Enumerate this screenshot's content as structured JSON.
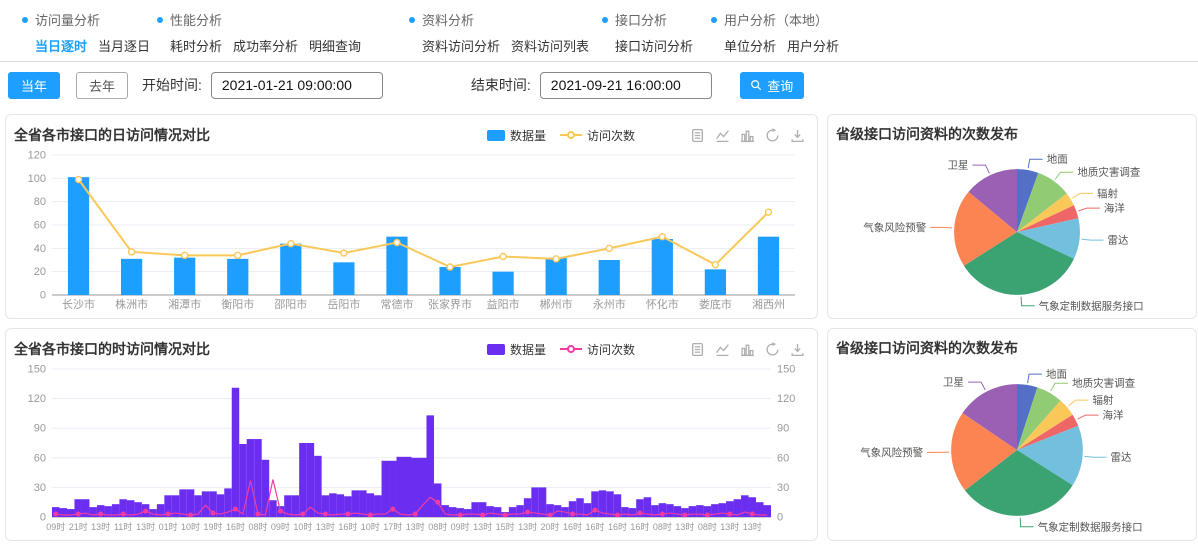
{
  "nav": {
    "groups": [
      {
        "title": "访问量分析",
        "items": [
          {
            "label": "当日逐时",
            "active": true
          },
          {
            "label": "当月逐日",
            "active": false
          }
        ]
      },
      {
        "title": "性能分析",
        "items": [
          {
            "label": "耗时分析",
            "active": false
          },
          {
            "label": "成功率分析",
            "active": false
          },
          {
            "label": "明细查询",
            "active": false
          }
        ]
      },
      {
        "title": "资料分析",
        "items": [
          {
            "label": "资料访问分析",
            "active": false
          },
          {
            "label": "资料访问列表",
            "active": false
          }
        ]
      },
      {
        "title": "接口分析",
        "items": [
          {
            "label": "接口访问分析",
            "active": false
          }
        ]
      },
      {
        "title": "用户分析（本地）",
        "items": [
          {
            "label": "单位分析",
            "active": false
          },
          {
            "label": "用户分析",
            "active": false
          }
        ]
      }
    ]
  },
  "filters": {
    "year_current": "当年",
    "year_last": "去年",
    "start_label": "开始时间:",
    "start_value": "2021-01-21 09:00:00",
    "end_label": "结束时间:",
    "end_value": "2021-09-21 16:00:00",
    "search_label": "查询"
  },
  "icons": {
    "query_button": "search-icon",
    "nav_bullet": "dot-icon",
    "toolbox": [
      "data-view-icon",
      "line-chart-icon",
      "bar-chart-icon",
      "restore-icon",
      "save-image-icon"
    ]
  },
  "colors": {
    "accent": "#1e9fff",
    "bar_blue": "#1e9fff",
    "line_orange": "#fac858",
    "bar_purple": "#6b2df0",
    "line_pink": "#f43ba2",
    "divider": "#dcdcdc",
    "grid": "#e9edf5"
  },
  "chart_data": [
    {
      "type": "bar",
      "title": "全省各市接口的日访问情况对比",
      "legend": [
        "数据量",
        "访问次数"
      ],
      "categories": [
        "长沙市",
        "株洲市",
        "湘潭市",
        "衡阳市",
        "邵阳市",
        "岳阳市",
        "常德市",
        "张家界市",
        "益阳市",
        "郴州市",
        "永州市",
        "怀化市",
        "娄底市",
        "湘西州"
      ],
      "series": [
        {
          "name": "数据量",
          "kind": "bar",
          "color": "#1e9fff",
          "values": [
            101,
            31,
            32,
            31,
            44,
            28,
            50,
            24,
            20,
            32,
            30,
            48,
            22,
            50
          ]
        },
        {
          "name": "访问次数",
          "kind": "line",
          "color": "#fac858",
          "values": [
            99,
            37,
            34,
            34,
            44,
            36,
            45,
            24,
            33,
            31,
            40,
            50,
            26,
            71
          ]
        }
      ],
      "ylim": [
        0,
        120
      ],
      "ytick": 20,
      "dual": false,
      "label_every": 1,
      "bar_frac": 0.4,
      "marker": {
        "r": 3,
        "fill": "#ffffff",
        "every": 1
      },
      "xfs": 11,
      "lw": 2,
      "grid": true,
      "legend_pos": "top-right"
    },
    {
      "type": "bar",
      "title": "全省各市接口的时访问情况对比",
      "legend": [
        "数据量",
        "访问次数"
      ],
      "categories": [
        "09时",
        "21时",
        "13时",
        "11时",
        "13时",
        "01时",
        "10时",
        "19时",
        "16时",
        "08时",
        "09时",
        "10时",
        "13时",
        "16时",
        "10时",
        "17时",
        "13时",
        "08时",
        "09时",
        "13时",
        "15时",
        "13时",
        "20时",
        "16时",
        "16时",
        "16时",
        "16时",
        "08时",
        "13时",
        "08时",
        "13时",
        "13时"
      ],
      "series": [
        {
          "name": "数据量",
          "kind": "bar",
          "color": "#6b2df0",
          "values": [
            10,
            9,
            8,
            18,
            18,
            10,
            12,
            11,
            13,
            18,
            17,
            15,
            13,
            8,
            13,
            22,
            22,
            28,
            28,
            22,
            26,
            26,
            23,
            29,
            131,
            74,
            79,
            79,
            58,
            17,
            11,
            22,
            22,
            75,
            75,
            62,
            22,
            24,
            23,
            21,
            27,
            27,
            24,
            22,
            57,
            57,
            61,
            61,
            60,
            60,
            103,
            34,
            12,
            10,
            9,
            8,
            15,
            15,
            11,
            10,
            5,
            10,
            12,
            19,
            30,
            30,
            13,
            12,
            10,
            16,
            19,
            14,
            26,
            27,
            26,
            23,
            10,
            9,
            18,
            20,
            12,
            14,
            13,
            11,
            9,
            11,
            12,
            11,
            13,
            14,
            16,
            18,
            22,
            20,
            15,
            12
          ]
        },
        {
          "name": "访问次数",
          "kind": "line",
          "color": "#f43ba2",
          "values": [
            3,
            2,
            2,
            3,
            4,
            2,
            3,
            2,
            2,
            3,
            2,
            3,
            6,
            3,
            2,
            3,
            4,
            3,
            2,
            3,
            12,
            4,
            3,
            5,
            8,
            3,
            37,
            3,
            2,
            38,
            6,
            3,
            2,
            3,
            10,
            4,
            3,
            2,
            3,
            3,
            4,
            3,
            2,
            3,
            3,
            8,
            3,
            2,
            3,
            12,
            20,
            15,
            3,
            2,
            2,
            3,
            3,
            2,
            4,
            3,
            2,
            3,
            3,
            5,
            4,
            3,
            2,
            6,
            5,
            3,
            3,
            2,
            7,
            4,
            3,
            2,
            3,
            2,
            4,
            3,
            2,
            3,
            4,
            3,
            2,
            3,
            3,
            2,
            3,
            4,
            3,
            2,
            5,
            3,
            2,
            2
          ]
        }
      ],
      "ylim": [
        0,
        150
      ],
      "ytick": 30,
      "dual": true,
      "label_every": 3,
      "bar_frac": 1,
      "marker": {
        "r": 1.8,
        "fill": "#f43ba2",
        "every": 3
      },
      "xfs": 9,
      "lw": 1.2,
      "grid": true,
      "legend_pos": "top-right"
    },
    {
      "type": "pie",
      "title": "省级接口访问资料的次数发布",
      "slices": [
        {
          "name": "地面",
          "value": 5.5,
          "color": "#5470c6"
        },
        {
          "name": "地质灾害调查",
          "value": 9,
          "color": "#91cc75"
        },
        {
          "name": "辐射",
          "value": 3.5,
          "color": "#fac858"
        },
        {
          "name": "海洋",
          "value": 3.5,
          "color": "#ee6666"
        },
        {
          "name": "雷达",
          "value": 10.5,
          "color": "#73c0de"
        },
        {
          "name": "气象定制数据服务接口",
          "value": 34,
          "color": "#3ba272"
        },
        {
          "name": "气象风险预警",
          "value": 20,
          "color": "#fc8452"
        },
        {
          "name": "卫星",
          "value": 14,
          "color": "#9a60b4"
        }
      ]
    },
    {
      "type": "pie",
      "title": "省级接口访问资料的次数发布",
      "slices": [
        {
          "name": "地面",
          "value": 5,
          "color": "#5470c6"
        },
        {
          "name": "地质灾害调查",
          "value": 6.5,
          "color": "#91cc75"
        },
        {
          "name": "辐射",
          "value": 4.5,
          "color": "#fac858"
        },
        {
          "name": "海洋",
          "value": 3,
          "color": "#ee6666"
        },
        {
          "name": "雷达",
          "value": 15,
          "color": "#73c0de"
        },
        {
          "name": "气象定制数据服务接口",
          "value": 30.5,
          "color": "#3ba272"
        },
        {
          "name": "气象风险预警",
          "value": 20,
          "color": "#fc8452"
        },
        {
          "name": "卫星",
          "value": 15.5,
          "color": "#9a60b4"
        }
      ]
    }
  ]
}
